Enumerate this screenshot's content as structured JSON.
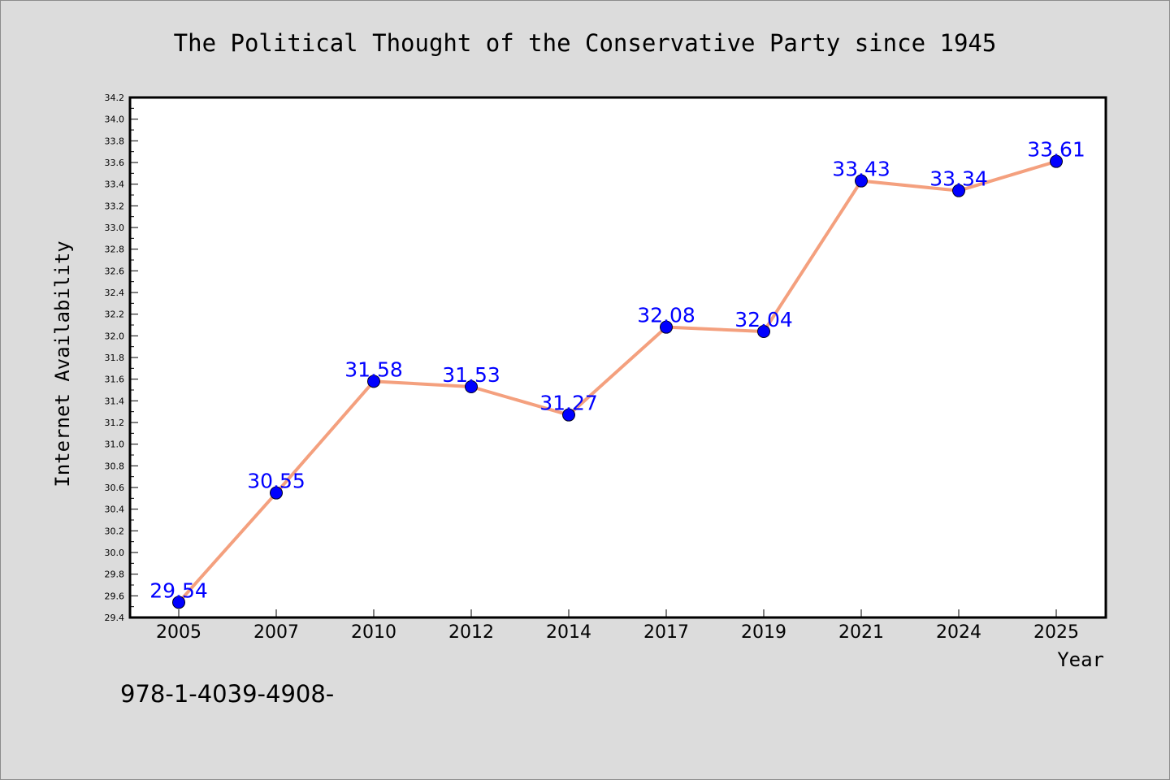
{
  "footer_text": "978-1-4039-4908-",
  "colors": {
    "background": "#dcdcdc",
    "plot_background": "#ffffff",
    "line": "#f4a07e",
    "marker": "#0000ff",
    "data_label": "#0000ff"
  },
  "chart_data": {
    "type": "line",
    "title": "The Political Thought of the Conservative Party since 1945",
    "xlabel": "Year",
    "ylabel": "Internet Availability",
    "categories": [
      "2005",
      "2007",
      "2010",
      "2012",
      "2014",
      "2017",
      "2019",
      "2021",
      "2024",
      "2025"
    ],
    "series": [
      {
        "values": [
          29.54,
          30.55,
          31.58,
          31.53,
          31.27,
          32.08,
          32.04,
          33.43,
          33.34,
          33.61
        ],
        "labels": [
          "29.54",
          "30.55",
          "31.58",
          "31.53",
          "31.27",
          "32.08",
          "32.04",
          "33.43",
          "33.34",
          "33.61"
        ]
      }
    ],
    "ylim": [
      29.4,
      34.2
    ],
    "yticks": [
      "29.4",
      "29.6",
      "29.8",
      "30.0",
      "30.2",
      "30.4",
      "30.6",
      "30.8",
      "31.0",
      "31.2",
      "31.4",
      "31.6",
      "31.8",
      "32.0",
      "32.2",
      "32.4",
      "32.6",
      "32.8",
      "33.0",
      "33.2",
      "33.4",
      "33.6",
      "33.8",
      "34.0",
      "34.2"
    ],
    "grid": false,
    "legend": "none"
  }
}
